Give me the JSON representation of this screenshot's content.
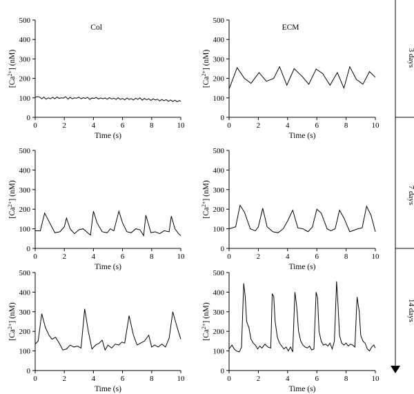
{
  "figure": {
    "row_labels": [
      "3 days",
      "7 days",
      "14 days"
    ],
    "col_titles": [
      "Col",
      "ECM"
    ]
  },
  "chart_data": [
    {
      "type": "line",
      "panel": "Col 3 days",
      "title": "Col",
      "xlabel": "Time (s)",
      "ylabel": "[Ca2+] (nM)",
      "xlim": [
        0,
        10
      ],
      "ylim": [
        0,
        500
      ],
      "xticks": [
        0,
        2,
        4,
        6,
        8,
        10
      ],
      "yticks": [
        0,
        100,
        200,
        300,
        400,
        500
      ],
      "series": [
        {
          "x": [
            0,
            0.15,
            0.3,
            0.45,
            0.6,
            0.75,
            0.9,
            1.05,
            1.2,
            1.35,
            1.5,
            1.65,
            1.8,
            1.95,
            2.1,
            2.25,
            2.4,
            2.55,
            2.7,
            2.85,
            3.0,
            3.15,
            3.3,
            3.45,
            3.6,
            3.75,
            3.9,
            4.05,
            4.2,
            4.35,
            4.5,
            4.65,
            4.8,
            4.95,
            5.1,
            5.25,
            5.4,
            5.55,
            5.7,
            5.85,
            6.0,
            6.15,
            6.3,
            6.45,
            6.6,
            6.75,
            6.9,
            7.05,
            7.2,
            7.35,
            7.5,
            7.65,
            7.8,
            7.95,
            8.1,
            8.25,
            8.4,
            8.55,
            8.7,
            8.85,
            9.0,
            9.15,
            9.3,
            9.45,
            9.6,
            9.75,
            9.9,
            10.0
          ],
          "y": [
            103,
            106,
            104,
            95,
            104,
            93,
            100,
            95,
            103,
            95,
            104,
            97,
            100,
            99,
            106,
            93,
            103,
            95,
            100,
            98,
            104,
            95,
            101,
            97,
            103,
            92,
            99,
            97,
            102,
            94,
            100,
            95,
            99,
            93,
            101,
            94,
            98,
            92,
            100,
            92,
            97,
            90,
            99,
            92,
            96,
            89,
            98,
            92,
            100,
            88,
            97,
            90,
            95,
            87,
            95,
            89,
            93,
            84,
            92,
            85,
            91,
            82,
            89,
            81,
            88,
            80,
            86,
            82
          ]
        }
      ]
    },
    {
      "type": "line",
      "panel": "ECM 3 days",
      "title": "ECM",
      "xlabel": "Time (s)",
      "ylabel": "[Ca2+] (nM)",
      "xlim": [
        0,
        10
      ],
      "ylim": [
        0,
        500
      ],
      "xticks": [
        0,
        2,
        4,
        6,
        8,
        10
      ],
      "yticks": [
        0,
        100,
        200,
        300,
        400,
        500
      ],
      "series": [
        {
          "x": [
            0,
            0.55,
            1.05,
            1.5,
            2.05,
            2.55,
            3.05,
            3.45,
            3.95,
            4.45,
            5.0,
            5.45,
            5.95,
            6.4,
            6.9,
            7.4,
            7.85,
            8.25,
            8.7,
            9.15,
            9.6,
            10.0
          ],
          "y": [
            145,
            255,
            200,
            175,
            230,
            185,
            200,
            260,
            165,
            250,
            210,
            170,
            248,
            225,
            165,
            230,
            150,
            260,
            195,
            170,
            235,
            205
          ]
        }
      ]
    },
    {
      "type": "line",
      "panel": "Col 7 days",
      "xlabel": "Time (s)",
      "ylabel": "[Ca2+] (nM)",
      "xlim": [
        0,
        10
      ],
      "ylim": [
        0,
        500
      ],
      "xticks": [
        0,
        2,
        4,
        6,
        8,
        10
      ],
      "yticks": [
        0,
        100,
        200,
        300,
        400,
        500
      ],
      "series": [
        {
          "x": [
            0,
            0.35,
            0.65,
            1.0,
            1.35,
            1.7,
            2.0,
            2.15,
            2.4,
            2.7,
            3.0,
            3.3,
            3.6,
            3.8,
            4.0,
            4.25,
            4.6,
            4.95,
            5.15,
            5.4,
            5.75,
            6.0,
            6.3,
            6.6,
            6.9,
            7.2,
            7.45,
            7.6,
            7.95,
            8.25,
            8.55,
            8.85,
            9.2,
            9.35,
            9.6,
            9.85,
            10.0
          ],
          "y": [
            90,
            90,
            180,
            130,
            80,
            85,
            110,
            155,
            100,
            75,
            95,
            100,
            80,
            68,
            190,
            130,
            85,
            80,
            100,
            90,
            190,
            130,
            85,
            80,
            100,
            95,
            65,
            170,
            80,
            85,
            75,
            90,
            85,
            165,
            100,
            75,
            65
          ]
        }
      ]
    },
    {
      "type": "line",
      "panel": "ECM 7 days",
      "xlabel": "Time (s)",
      "ylabel": "[Ca2+] (nM)",
      "xlim": [
        0,
        10
      ],
      "ylim": [
        0,
        500
      ],
      "xticks": [
        0,
        2,
        4,
        6,
        8,
        10
      ],
      "yticks": [
        0,
        100,
        200,
        300,
        400,
        500
      ],
      "series": [
        {
          "x": [
            0,
            0.45,
            0.75,
            1.05,
            1.45,
            1.8,
            2.0,
            2.3,
            2.6,
            3.0,
            3.35,
            3.7,
            4.0,
            4.35,
            4.7,
            5.05,
            5.4,
            5.7,
            6.0,
            6.3,
            6.7,
            6.95,
            7.25,
            7.55,
            7.85,
            8.25,
            8.8,
            9.1,
            9.4,
            9.7,
            10.0
          ],
          "y": [
            100,
            110,
            220,
            185,
            100,
            90,
            110,
            205,
            110,
            85,
            80,
            100,
            140,
            195,
            105,
            100,
            85,
            110,
            200,
            180,
            100,
            90,
            100,
            195,
            155,
            85,
            100,
            105,
            215,
            170,
            85
          ]
        }
      ]
    },
    {
      "type": "line",
      "panel": "Col 14 days",
      "xlabel": "Time (s)",
      "ylabel": "[Ca2+] (nM)",
      "xlim": [
        0,
        10
      ],
      "ylim": [
        0,
        500
      ],
      "xticks": [
        0,
        2,
        4,
        6,
        8,
        10
      ],
      "yticks": [
        0,
        100,
        200,
        300,
        400,
        500
      ],
      "series": [
        {
          "x": [
            0,
            0.2,
            0.45,
            0.7,
            0.95,
            1.15,
            1.4,
            1.65,
            1.9,
            2.15,
            2.4,
            2.65,
            2.9,
            3.15,
            3.4,
            3.65,
            3.9,
            4.15,
            4.4,
            4.6,
            4.8,
            5.0,
            5.25,
            5.5,
            5.75,
            5.95,
            6.15,
            6.45,
            6.75,
            7.0,
            7.25,
            7.5,
            7.8,
            8.0,
            8.2,
            8.45,
            8.7,
            8.95,
            9.2,
            9.45,
            9.75,
            10.0
          ],
          "y": [
            135,
            150,
            290,
            220,
            180,
            160,
            170,
            140,
            105,
            110,
            130,
            120,
            125,
            115,
            315,
            200,
            110,
            130,
            140,
            155,
            105,
            130,
            115,
            135,
            130,
            145,
            140,
            280,
            180,
            130,
            140,
            150,
            180,
            120,
            130,
            120,
            135,
            120,
            165,
            300,
            220,
            160
          ]
        }
      ]
    },
    {
      "type": "line",
      "panel": "ECM 14 days",
      "xlabel": "Time (s)",
      "ylabel": "[Ca2+] (nM)",
      "xlim": [
        0,
        10
      ],
      "ylim": [
        0,
        500
      ],
      "xticks": [
        0,
        2,
        4,
        6,
        8,
        10
      ],
      "yticks": [
        0,
        100,
        200,
        300,
        400,
        500
      ],
      "series": [
        {
          "x": [
            0,
            0.2,
            0.35,
            0.5,
            0.7,
            0.85,
            1.0,
            1.1,
            1.2,
            1.35,
            1.5,
            1.65,
            1.8,
            1.95,
            2.1,
            2.25,
            2.45,
            2.65,
            2.85,
            2.95,
            3.05,
            3.15,
            3.3,
            3.45,
            3.6,
            3.75,
            3.9,
            4.05,
            4.2,
            4.35,
            4.5,
            4.62,
            4.75,
            4.9,
            5.05,
            5.2,
            5.35,
            5.5,
            5.65,
            5.8,
            5.95,
            6.05,
            6.15,
            6.3,
            6.45,
            6.6,
            6.75,
            6.9,
            7.05,
            7.2,
            7.35,
            7.45,
            7.55,
            7.7,
            7.85,
            8.0,
            8.15,
            8.3,
            8.45,
            8.6,
            8.75,
            8.9,
            9.0,
            9.15,
            9.3,
            9.45,
            9.6,
            9.75,
            9.9,
            10.0
          ],
          "y": [
            110,
            130,
            110,
            100,
            95,
            120,
            445,
            380,
            250,
            220,
            160,
            140,
            130,
            110,
            125,
            115,
            135,
            120,
            115,
            390,
            380,
            250,
            170,
            140,
            125,
            110,
            120,
            100,
            120,
            95,
            400,
            330,
            200,
            150,
            130,
            120,
            115,
            125,
            105,
            110,
            400,
            370,
            200,
            150,
            130,
            135,
            125,
            140,
            110,
            150,
            455,
            330,
            180,
            140,
            130,
            140,
            125,
            135,
            130,
            120,
            375,
            300,
            180,
            150,
            140,
            110,
            100,
            120,
            130,
            115
          ]
        }
      ]
    }
  ]
}
